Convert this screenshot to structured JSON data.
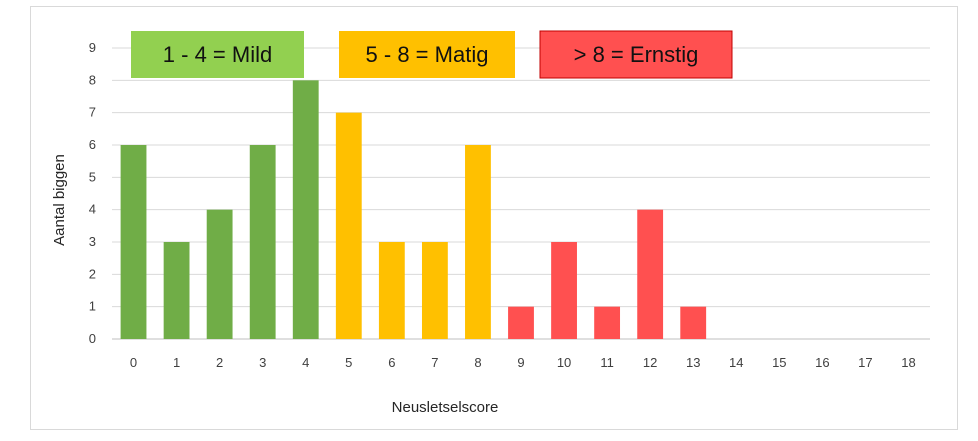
{
  "chart_data": {
    "type": "bar",
    "title": "",
    "xlabel": "Neusletselscore",
    "ylabel": "Aantal biggen",
    "ylim": [
      0,
      9
    ],
    "y_ticks": [
      "0",
      "1",
      "2",
      "3",
      "4",
      "5",
      "6",
      "7",
      "8",
      "9"
    ],
    "categories": [
      "0",
      "1",
      "2",
      "3",
      "4",
      "5",
      "6",
      "7",
      "8",
      "9",
      "10",
      "11",
      "12",
      "13",
      "14",
      "15",
      "16",
      "17",
      "18"
    ],
    "values": [
      6,
      3,
      4,
      6,
      8,
      7,
      3,
      3,
      6,
      1,
      3,
      1,
      4,
      1,
      0,
      0,
      0,
      0,
      0
    ],
    "bar_colors": [
      "#70ad47",
      "#70ad47",
      "#70ad47",
      "#70ad47",
      "#70ad47",
      "#ffc000",
      "#ffc000",
      "#ffc000",
      "#ffc000",
      "#ff5050",
      "#ff5050",
      "#ff5050",
      "#ff5050",
      "#ff5050",
      "#ff5050",
      "#ff5050",
      "#ff5050",
      "#ff5050",
      "#ff5050"
    ],
    "grid": true,
    "legend_position": "top",
    "legend": [
      {
        "label": "1 - 4 = Mild",
        "color": "#92d050"
      },
      {
        "label": "5 - 8 = Matig",
        "color": "#ffc000"
      },
      {
        "label": "> 8 = Ernstig",
        "color": "#ff5050"
      }
    ]
  }
}
